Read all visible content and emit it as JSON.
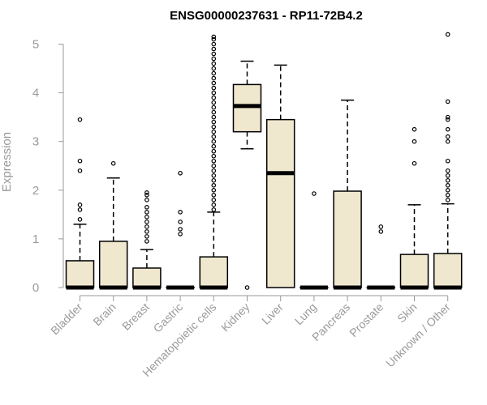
{
  "chart_data": {
    "type": "boxplot",
    "title": "ENSG00000237631 - RP11-72B4.2",
    "xlabel": "",
    "ylabel": "Expression",
    "ylim": [
      0,
      5.2
    ],
    "yticks": [
      0,
      1,
      2,
      3,
      4,
      5
    ],
    "box_fill": "#efe8cf",
    "axis_color": "#9a9a9a",
    "grid": false,
    "categories": [
      "Bladder",
      "Brain",
      "Breast",
      "Gastric",
      "Hematopoietic cells",
      "Kidney",
      "Liver",
      "Lung",
      "Pancreas",
      "Prostate",
      "Skin",
      "Unknown / Other"
    ],
    "boxes": [
      {
        "name": "Bladder",
        "min": 0,
        "q1": 0,
        "median": 0,
        "q3": 0.55,
        "max": 1.3,
        "outliers": [
          1.4,
          1.6,
          1.7,
          2.4,
          2.6,
          3.45
        ]
      },
      {
        "name": "Brain",
        "min": 0,
        "q1": 0,
        "median": 0,
        "q3": 0.95,
        "max": 2.25,
        "outliers": [
          2.55
        ]
      },
      {
        "name": "Breast",
        "min": 0,
        "q1": 0,
        "median": 0,
        "q3": 0.4,
        "max": 0.78,
        "outliers": [
          0.95,
          1.05,
          1.15,
          1.25,
          1.35,
          1.45,
          1.55,
          1.65,
          1.8,
          1.9,
          1.95
        ]
      },
      {
        "name": "Gastric",
        "min": 0,
        "q1": 0,
        "median": 0,
        "q3": 0,
        "max": 0,
        "outliers": [
          1.1,
          1.2,
          1.35,
          1.55,
          2.35
        ]
      },
      {
        "name": "Hematopoietic cells",
        "min": 0,
        "q1": 0,
        "median": 0,
        "q3": 0.63,
        "max": 1.55,
        "outliers": [
          1.6,
          1.7,
          1.8,
          1.9,
          2.0,
          2.1,
          2.2,
          2.3,
          2.4,
          2.5,
          2.6,
          2.7,
          2.8,
          2.9,
          3.0,
          3.1,
          3.2,
          3.3,
          3.4,
          3.5,
          3.6,
          3.7,
          3.8,
          3.9,
          4.0,
          4.1,
          4.2,
          4.3,
          4.4,
          4.5,
          4.6,
          4.7,
          4.8,
          4.9,
          5.0,
          5.1,
          5.15
        ]
      },
      {
        "name": "Kidney",
        "min": 2.85,
        "q1": 3.2,
        "median": 3.73,
        "q3": 4.17,
        "max": 4.65,
        "outliers": [
          0
        ]
      },
      {
        "name": "Liver",
        "min": 0,
        "q1": 0,
        "median": 2.35,
        "q3": 3.45,
        "max": 4.57,
        "outliers": []
      },
      {
        "name": "Lung",
        "min": 0,
        "q1": 0,
        "median": 0,
        "q3": 0,
        "max": 0,
        "outliers": [
          1.93
        ]
      },
      {
        "name": "Pancreas",
        "min": 0,
        "q1": 0,
        "median": 0,
        "q3": 1.98,
        "max": 3.85,
        "outliers": []
      },
      {
        "name": "Prostate",
        "min": 0,
        "q1": 0,
        "median": 0,
        "q3": 0,
        "max": 0,
        "outliers": [
          1.15,
          1.25
        ]
      },
      {
        "name": "Skin",
        "min": 0,
        "q1": 0,
        "median": 0,
        "q3": 0.68,
        "max": 1.7,
        "outliers": [
          2.55,
          3.0,
          3.25
        ]
      },
      {
        "name": "Unknown / Other",
        "min": 0,
        "q1": 0,
        "median": 0,
        "q3": 0.7,
        "max": 1.72,
        "outliers": [
          1.8,
          1.9,
          2.0,
          2.1,
          2.2,
          2.3,
          2.4,
          2.6,
          3.0,
          3.1,
          3.25,
          3.45,
          3.5,
          3.82,
          5.2
        ]
      }
    ]
  }
}
